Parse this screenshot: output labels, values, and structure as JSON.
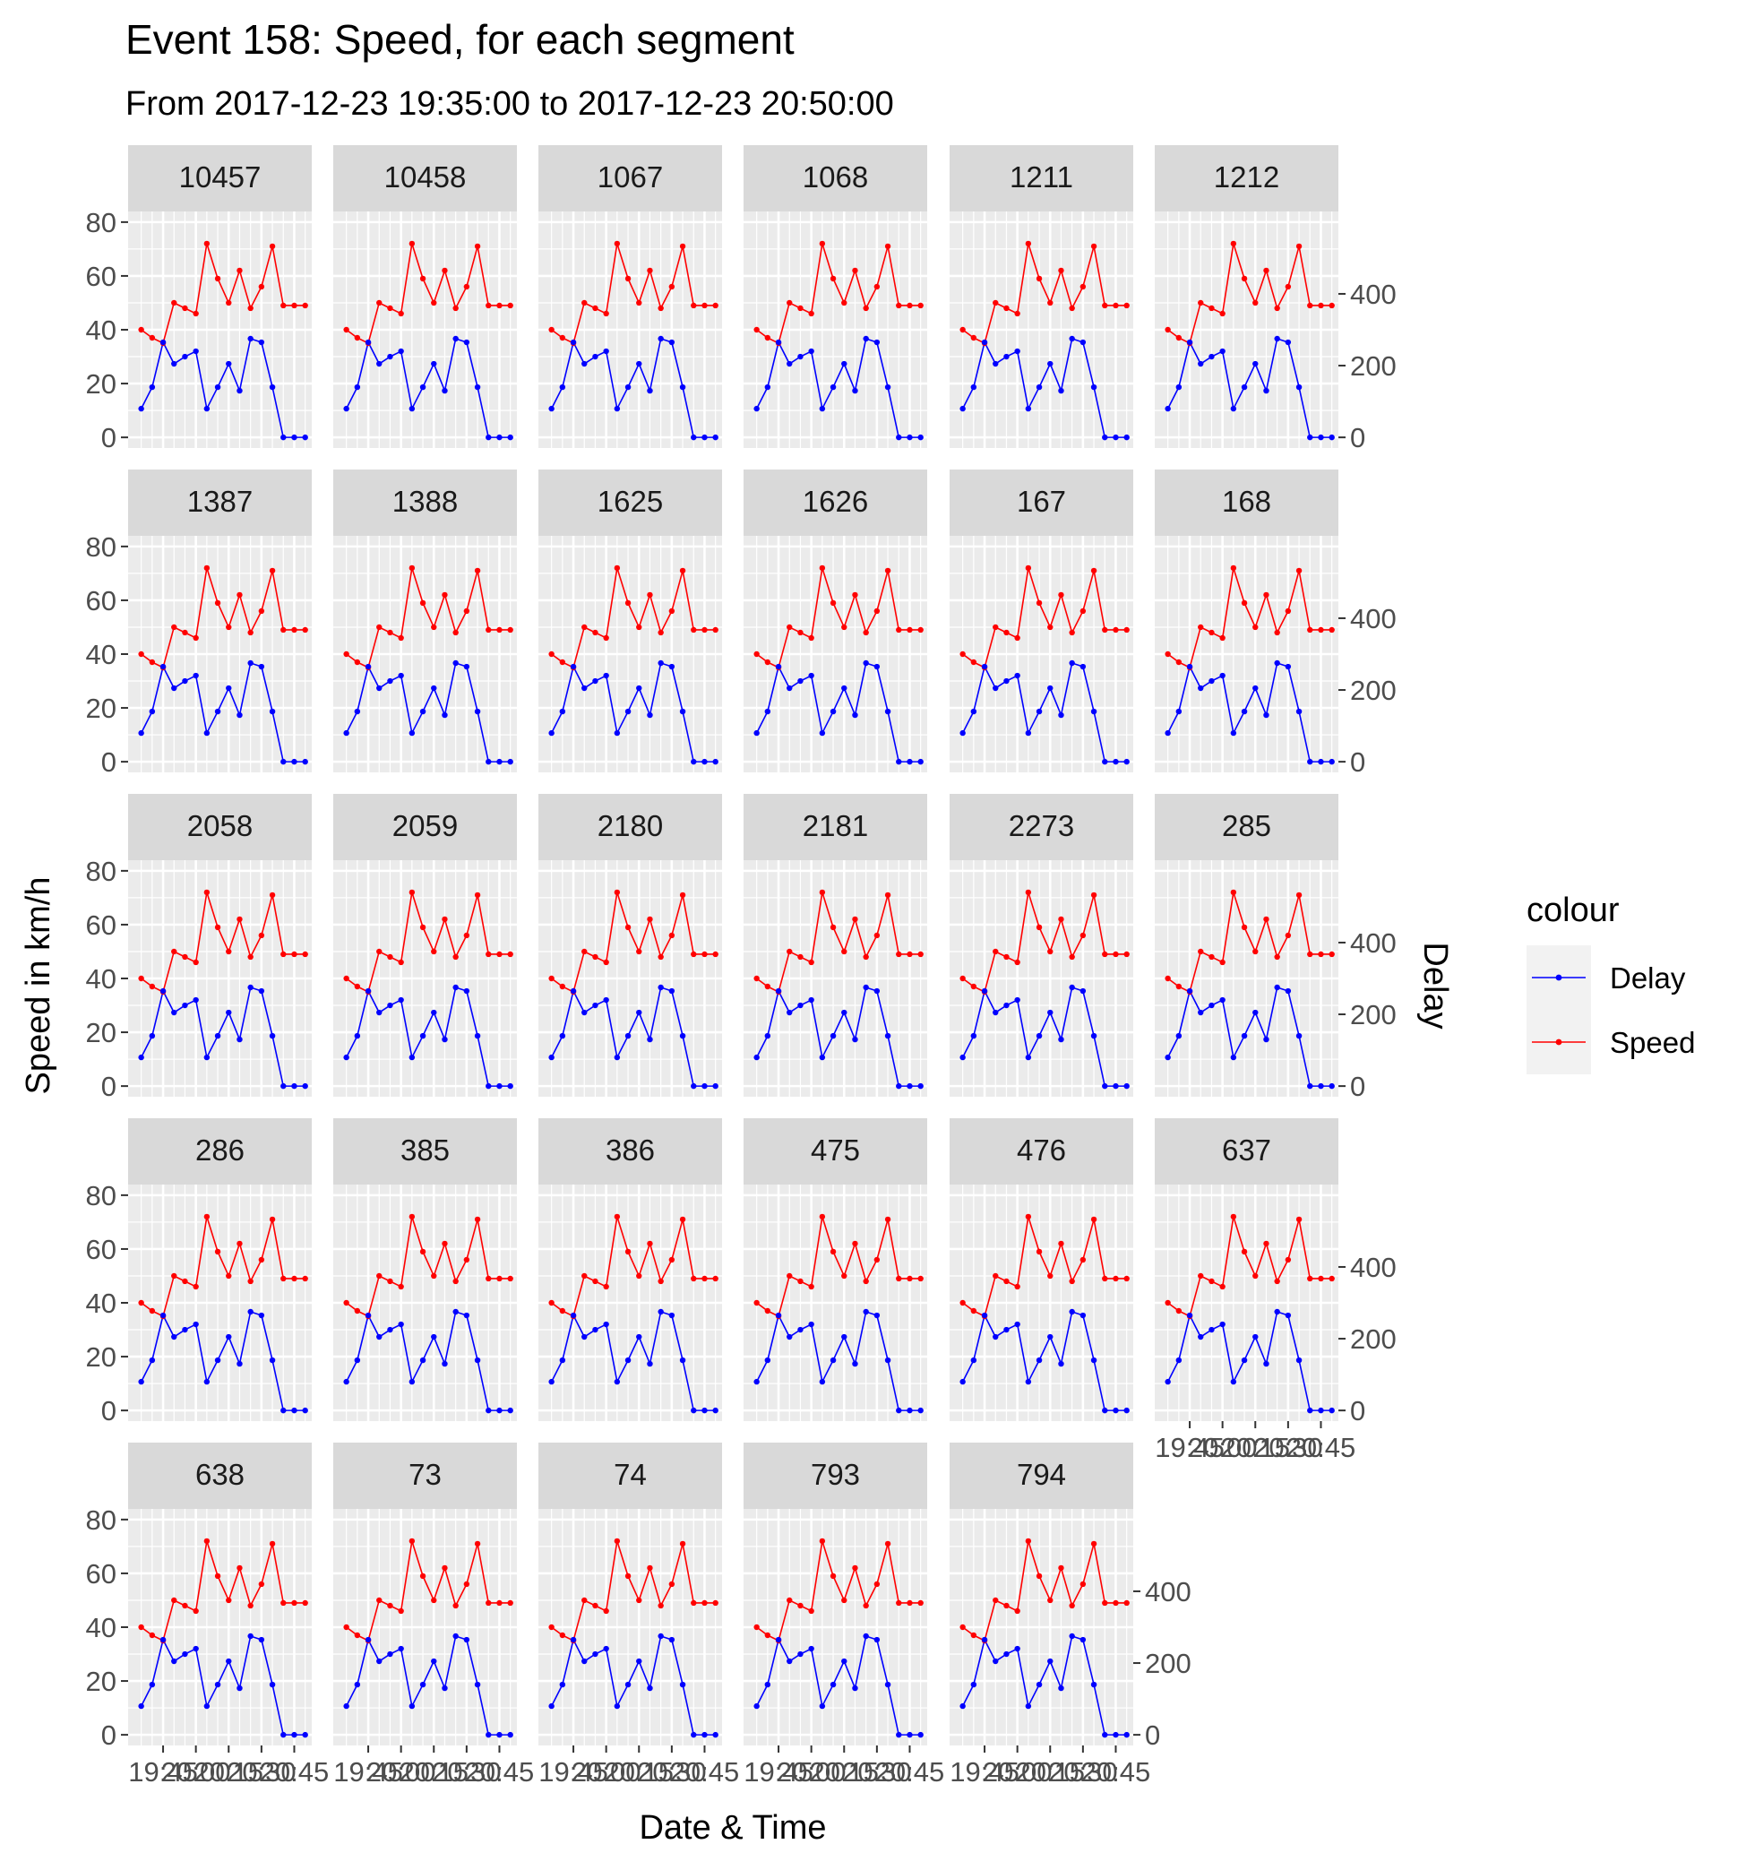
{
  "chart_data": {
    "type": "line",
    "title": "Event 158: Speed, for each segment",
    "subtitle": "From 2017-12-23 19:35:00 to 2017-12-23 20:50:00",
    "xlabel": "Date & Time",
    "ylabel": "Speed in km/h",
    "y2label": "Delay",
    "ylim": [
      0,
      80
    ],
    "y2lim": [
      0,
      600
    ],
    "yticks": [
      0,
      20,
      40,
      60,
      80
    ],
    "y2ticks": [
      0,
      200,
      400
    ],
    "xticks": [
      "19:45",
      "20:00",
      "20:15",
      "20:30",
      "20:45"
    ],
    "x": [
      "19:35",
      "19:40",
      "19:45",
      "19:50",
      "19:55",
      "20:00",
      "20:05",
      "20:10",
      "20:15",
      "20:20",
      "20:25",
      "20:30",
      "20:35",
      "20:40",
      "20:45",
      "20:50"
    ],
    "grid": true,
    "legend": {
      "title": "colour",
      "position": "right",
      "entries": [
        "Delay",
        "Speed"
      ]
    },
    "colors": {
      "Delay": "#0000ff",
      "Speed": "#ff0000",
      "panel_bg": "#ebebeb",
      "strip_bg": "#d9d9d9",
      "grid": "#ffffff"
    },
    "facets": [
      "10457",
      "10458",
      "1067",
      "1068",
      "1211",
      "1212",
      "1387",
      "1388",
      "1625",
      "1626",
      "167",
      "168",
      "2058",
      "2059",
      "2180",
      "2181",
      "2273",
      "285",
      "286",
      "385",
      "386",
      "475",
      "476",
      "637",
      "638",
      "73",
      "74",
      "793",
      "794"
    ],
    "series": [
      {
        "name": "Speed",
        "axis": "left",
        "values": [
          40,
          37,
          35,
          50,
          48,
          46,
          72,
          59,
          50,
          62,
          48,
          56,
          71,
          49,
          49,
          49
        ]
      },
      {
        "name": "Delay",
        "axis": "right",
        "values": [
          80,
          140,
          265,
          205,
          225,
          240,
          80,
          140,
          205,
          130,
          275,
          265,
          140,
          0,
          0,
          0
        ]
      }
    ]
  }
}
